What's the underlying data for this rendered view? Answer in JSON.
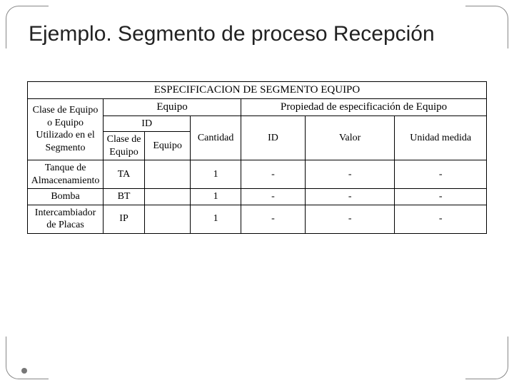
{
  "title": "Ejemplo. Segmento de proceso Recepción",
  "table": {
    "type": "table",
    "background_color": "#ffffff",
    "border_color": "#000000",
    "font_family": "Times New Roman",
    "header_main": "ESPECIFICACION DE SEGMENTO EQUIPO",
    "header_equipo": "Equipo",
    "header_propiedad": "Propiedad de especificación de Equipo",
    "header_clase_segmento": "Clase de Equipo o Equipo Utilizado en el Segmento",
    "header_id": "ID",
    "header_cantidad": "Cantidad",
    "header_clase_equipo": "Clase de Equipo",
    "header_equipo_col": "Equipo",
    "header_prop_id": "ID",
    "header_prop_valor": "Valor",
    "header_prop_unidad": "Unidad medida",
    "rows": [
      {
        "label": "Tanque de Almacenamiento",
        "clase": "TA",
        "equipo": "",
        "cantidad": "1",
        "pid": "-",
        "valor": "-",
        "unidad": "-"
      },
      {
        "label": "Bomba",
        "clase": "BT",
        "equipo": "",
        "cantidad": "1",
        "pid": "-",
        "valor": "-",
        "unidad": "-"
      },
      {
        "label": "Intercambiador de Placas",
        "clase": "IP",
        "equipo": "",
        "cantidad": "1",
        "pid": "-",
        "valor": "-",
        "unidad": "-"
      }
    ],
    "col_widths_pct": [
      16.5,
      9,
      10,
      11,
      14,
      19.5,
      20
    ]
  }
}
